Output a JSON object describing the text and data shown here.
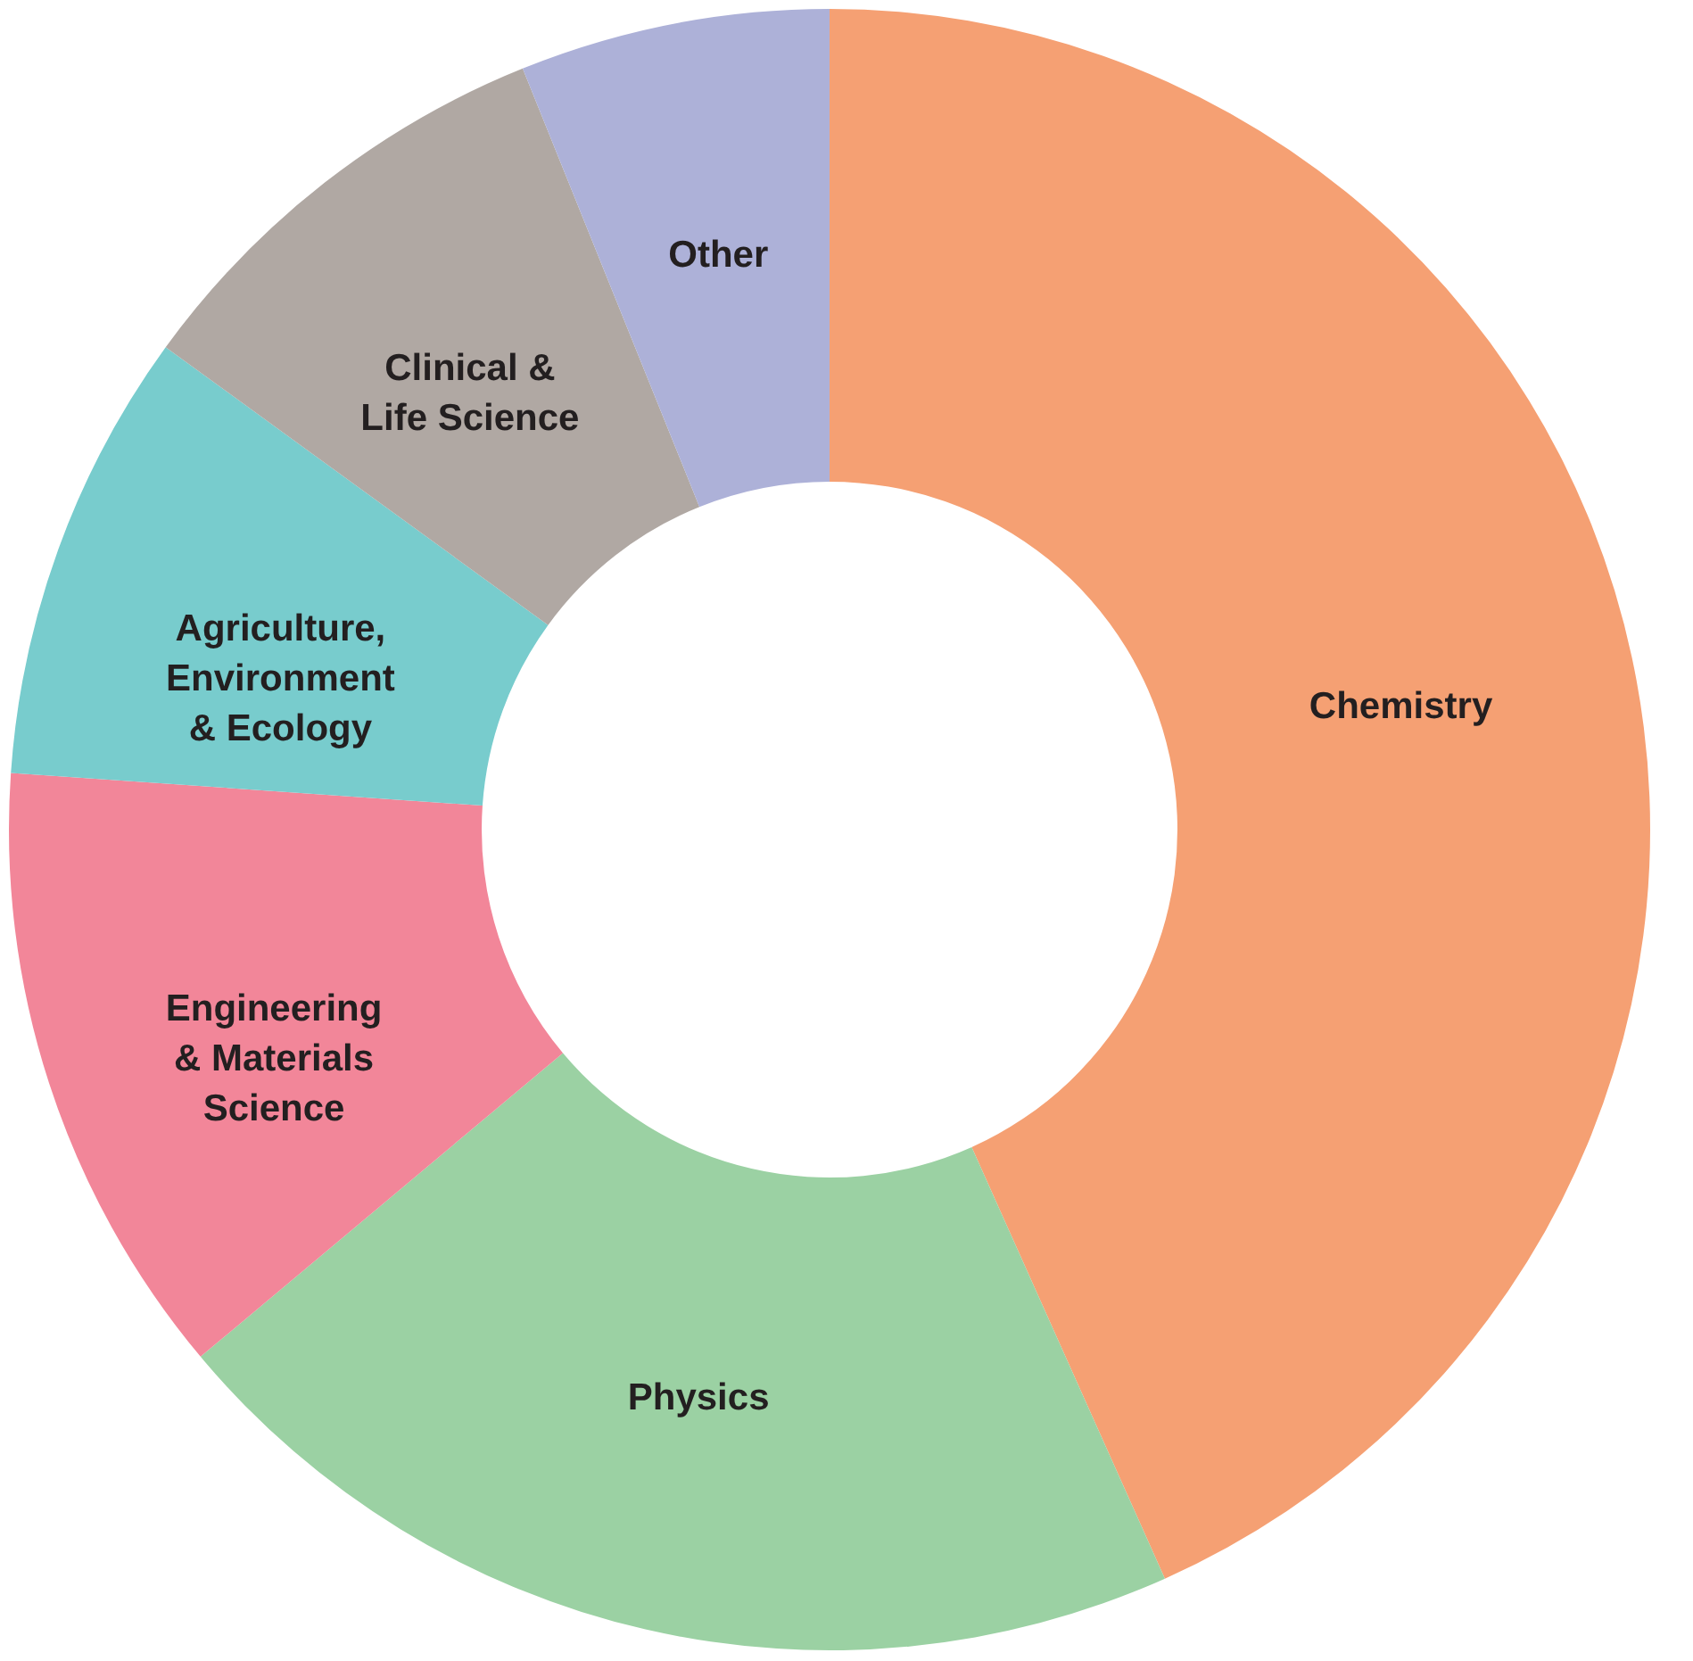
{
  "chart_data": {
    "type": "donut",
    "categories": [
      "Chemistry",
      "Physics",
      "Engineering & Materials Science",
      "Agriculture, Environment & Ecology",
      "Clinical & Life Science",
      "Other"
    ],
    "values": [
      43.3,
      20.6,
      12.2,
      8.9,
      8.9,
      6.1
    ],
    "colors": [
      "#f5a073",
      "#9bd1a3",
      "#f28699",
      "#78cccd",
      "#b0a8a3",
      "#adb1d8"
    ],
    "legend": false
  }
}
